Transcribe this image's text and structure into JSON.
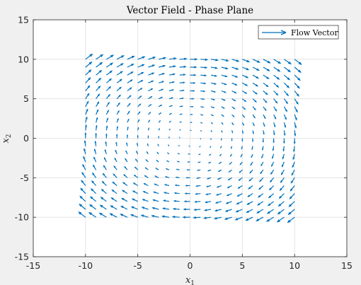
{
  "chart_data": {
    "type": "quiver",
    "title": "Vector Field - Phase Plane",
    "xlabel": "x",
    "xlabel_sub": "1",
    "ylabel": "x",
    "ylabel_sub": "2",
    "xlim": [
      -15,
      15
    ],
    "ylim": [
      -15,
      15
    ],
    "xticks": [
      -15,
      -10,
      -5,
      0,
      5,
      10,
      15
    ],
    "yticks": [
      -15,
      -10,
      -5,
      0,
      5,
      10,
      15
    ],
    "grid": true,
    "legend": {
      "position": "top-right",
      "entries": [
        "Flow Vector"
      ]
    },
    "series": [
      {
        "name": "Flow Vector",
        "field": {
          "u": "x2",
          "v": "-x1"
        },
        "x_range": [
          -10,
          10
        ],
        "y_range": [
          -10,
          10
        ],
        "step": 1
      }
    ],
    "colors": {
      "arrow": "#0072BD",
      "axes_bg": "#ffffff",
      "figure_bg": "#f0f0f0",
      "grid": "#dfdfdf"
    }
  }
}
